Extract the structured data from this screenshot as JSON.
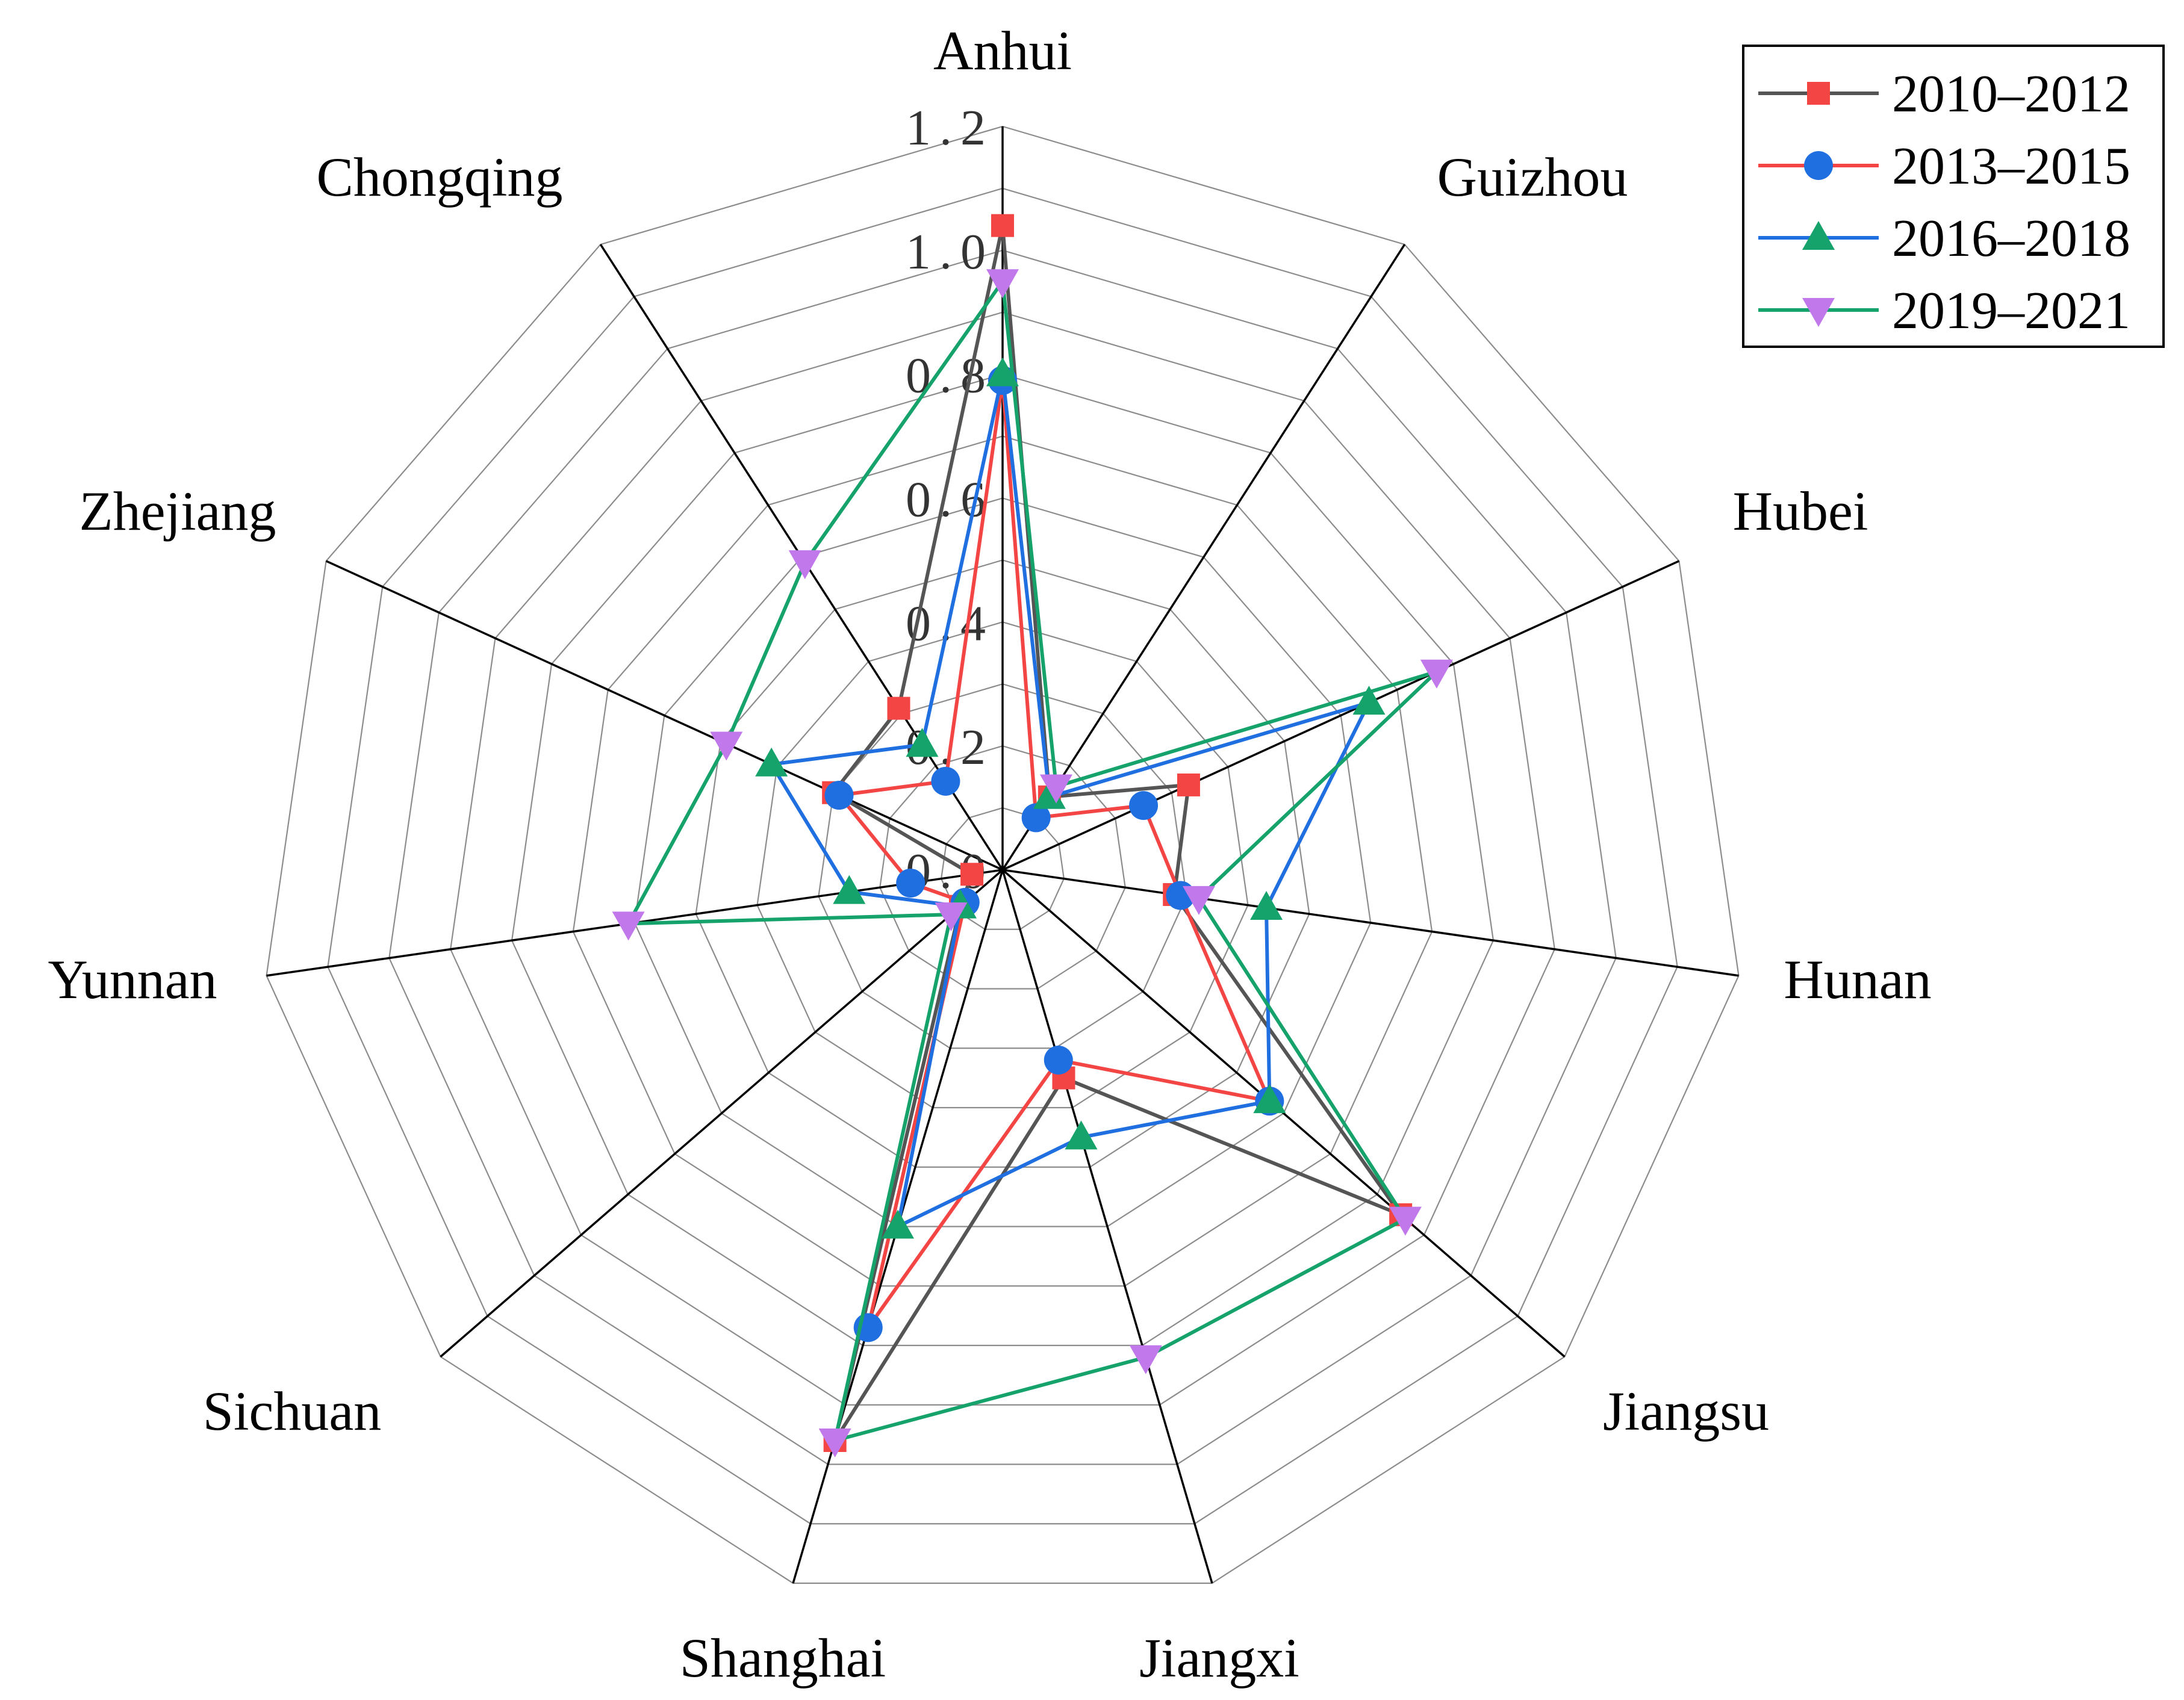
{
  "chart_data": {
    "type": "radar",
    "title": "",
    "axes": [
      "Anhui",
      "Guizhou",
      "Hubei",
      "Hunan",
      "Jiangsu",
      "Jiangxi",
      "Shanghai",
      "Sichuan",
      "Yunnan",
      "Zhejiang",
      "Chongqing"
    ],
    "r_ticks": [
      "0.0",
      "0.2",
      "0.4",
      "0.6",
      "0.8",
      "1.0",
      "1.2"
    ],
    "rlim": [
      0,
      1.2
    ],
    "grid": true,
    "legend_position": "top-right",
    "series": [
      {
        "name": "2010–2012",
        "line_color": "#555555",
        "marker_color": "#f44545",
        "marker": "square",
        "values": [
          1.04,
          0.14,
          0.33,
          0.28,
          0.85,
          0.35,
          0.96,
          0.09,
          0.05,
          0.3,
          0.31
        ]
      },
      {
        "name": "2013–2015",
        "line_color": "#f44545",
        "marker_color": "#1f6fe0",
        "marker": "circle",
        "values": [
          0.79,
          0.1,
          0.25,
          0.29,
          0.57,
          0.32,
          0.77,
          0.08,
          0.15,
          0.29,
          0.17
        ]
      },
      {
        "name": "2016–2018",
        "line_color": "#1f6fe0",
        "marker_color": "#16a36b",
        "marker": "triangle-up",
        "values": [
          0.8,
          0.14,
          0.65,
          0.43,
          0.57,
          0.45,
          0.6,
          0.09,
          0.25,
          0.41,
          0.24
        ]
      },
      {
        "name": "2019–2021",
        "line_color": "#16a36b",
        "marker_color": "#c178ea",
        "marker": "triangle-down",
        "values": [
          0.95,
          0.16,
          0.77,
          0.32,
          0.86,
          0.82,
          0.96,
          0.11,
          0.61,
          0.49,
          0.59
        ]
      }
    ]
  }
}
